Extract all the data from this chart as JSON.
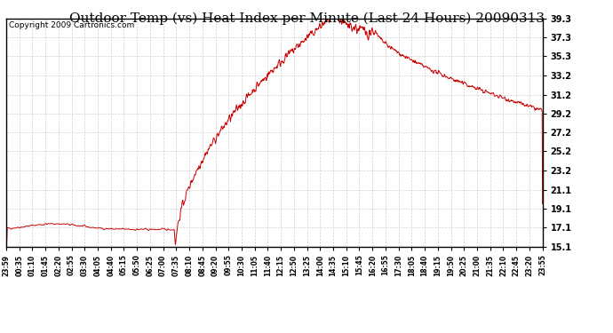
{
  "title": "Outdoor Temp (vs) Heat Index per Minute (Last 24 Hours) 20090313",
  "copyright": "Copyright 2009 Cartronics.com",
  "line_color": "#cc0000",
  "background_color": "#ffffff",
  "plot_bg_color": "#ffffff",
  "grid_color": "#cccccc",
  "y_ticks": [
    15.1,
    17.1,
    19.1,
    21.1,
    23.2,
    25.2,
    27.2,
    29.2,
    31.2,
    33.2,
    35.3,
    37.3,
    39.3
  ],
  "ylim": [
    15.1,
    39.3
  ],
  "x_labels": [
    "23:59",
    "00:35",
    "01:10",
    "01:45",
    "02:20",
    "02:55",
    "03:30",
    "04:05",
    "04:40",
    "05:15",
    "05:50",
    "06:25",
    "07:00",
    "07:35",
    "08:10",
    "08:45",
    "09:20",
    "09:55",
    "10:30",
    "11:05",
    "11:40",
    "12:15",
    "12:50",
    "13:25",
    "14:00",
    "14:35",
    "15:10",
    "15:45",
    "16:20",
    "16:55",
    "17:30",
    "18:05",
    "18:40",
    "19:15",
    "19:50",
    "20:25",
    "21:00",
    "21:35",
    "22:10",
    "22:45",
    "23:20",
    "23:55"
  ],
  "title_fontsize": 11,
  "copyright_fontsize": 6.5
}
